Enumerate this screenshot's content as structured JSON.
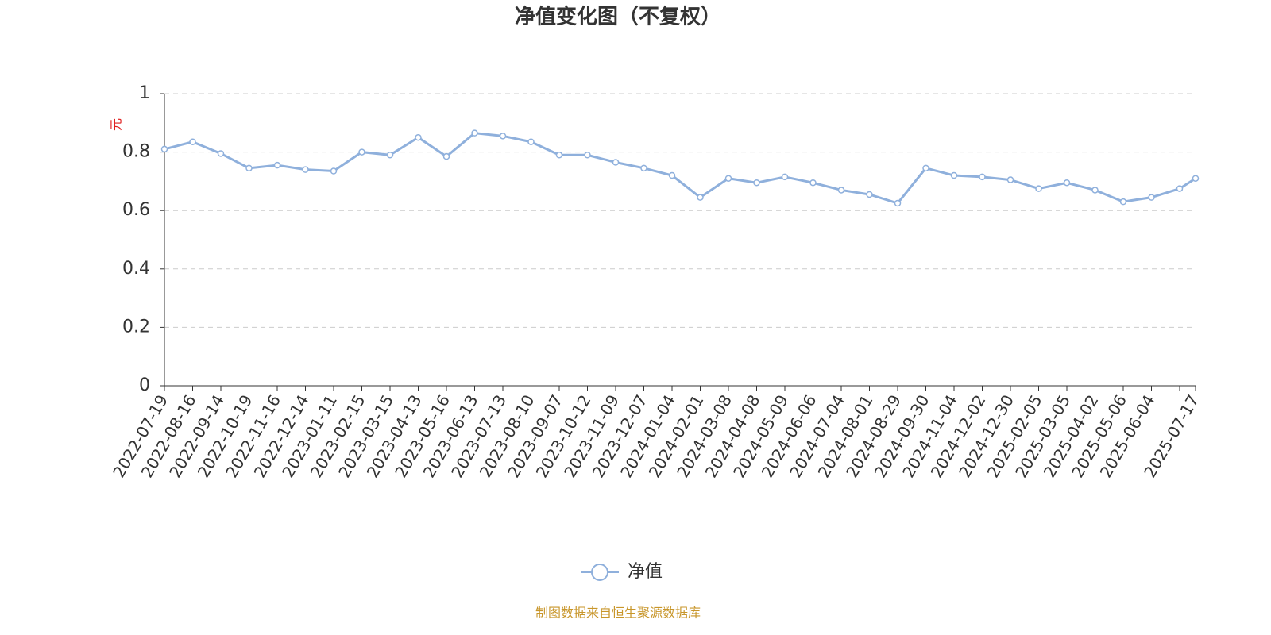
{
  "chart_data": {
    "type": "line",
    "title": "净值变化图（不复权）",
    "y_label": "元",
    "categories": [
      "2022-07-19",
      "2022-08-16",
      "2022-09-14",
      "2022-10-19",
      "2022-11-16",
      "2022-12-14",
      "2023-01-11",
      "2023-02-15",
      "2023-03-15",
      "2023-04-13",
      "2023-05-16",
      "2023-06-13",
      "2023-07-13",
      "2023-08-10",
      "2023-09-07",
      "2023-10-12",
      "2023-11-09",
      "2023-12-07",
      "2024-01-04",
      "2024-02-01",
      "2024-03-08",
      "2024-04-08",
      "2024-05-09",
      "2024-06-06",
      "2024-07-04",
      "2024-08-01",
      "2024-08-29",
      "2024-09-30",
      "2024-11-04",
      "2024-12-02",
      "2024-12-30",
      "2025-02-05",
      "2025-03-05",
      "2025-04-02",
      "2025-05-06",
      "2025-06-04",
      null,
      "2025-07-17"
    ],
    "series": [
      {
        "name": "净值",
        "color": "#8fb0dc",
        "values": [
          0.81,
          0.835,
          0.795,
          0.745,
          0.755,
          0.74,
          0.735,
          0.8,
          0.79,
          0.85,
          0.785,
          0.865,
          0.855,
          0.835,
          0.79,
          0.79,
          0.765,
          0.745,
          0.72,
          0.645,
          0.71,
          0.695,
          0.715,
          0.695,
          0.67,
          0.655,
          0.625,
          0.745,
          0.72,
          0.715,
          0.705,
          0.675,
          0.695,
          0.67,
          0.63,
          0.645,
          0.675,
          0.71
        ]
      }
    ],
    "ylim": [
      0,
      1
    ],
    "yticks": [
      0,
      0.2,
      0.4,
      0.6,
      0.8,
      1
    ],
    "grid": true,
    "legend": "bottom",
    "footer": "制图数据来自恒生聚源数据库"
  }
}
